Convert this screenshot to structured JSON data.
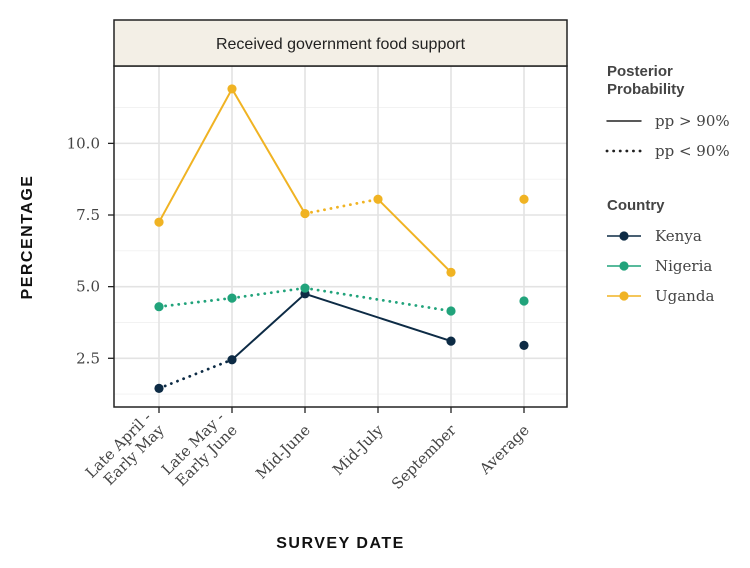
{
  "chart_data": {
    "type": "line",
    "panel_title": "Received government food support",
    "xlabel": "SURVEY DATE",
    "ylabel": "PERCENTAGE",
    "categories": [
      "Late April -\nEarly May",
      "Late May -\nEarly June",
      "Mid-June",
      "Mid-July",
      "September",
      "Average"
    ],
    "ylim": [
      0.8,
      12.7
    ],
    "yticks": [
      2.5,
      5.0,
      7.5,
      10.0
    ],
    "ytick_labels": [
      "2.5",
      "5.0",
      "7.5",
      "10.0"
    ],
    "grid": true,
    "legend_position": "right",
    "series": [
      {
        "name": "Kenya",
        "color": "#0d2b45",
        "values": [
          1.45,
          2.45,
          4.75,
          null,
          3.1,
          2.95
        ],
        "line_styles": [
          "dotted",
          "solid",
          "solid",
          "solid"
        ]
      },
      {
        "name": "Nigeria",
        "color": "#21a37b",
        "values": [
          4.3,
          4.6,
          4.95,
          null,
          4.15,
          4.5
        ],
        "line_styles": [
          "dotted",
          "dotted",
          "dotted",
          "dotted"
        ]
      },
      {
        "name": "Uganda",
        "color": "#f0b323",
        "values": [
          7.25,
          11.9,
          7.55,
          8.05,
          5.5,
          8.05
        ],
        "line_styles": [
          "solid",
          "solid",
          "dotted",
          "solid"
        ]
      }
    ],
    "legend": {
      "posterior_title": "Posterior\nProbability",
      "posterior_items": [
        {
          "label": "pp > 90%",
          "style": "solid"
        },
        {
          "label": "pp < 90%",
          "style": "dotted"
        }
      ],
      "country_title": "Country"
    }
  }
}
